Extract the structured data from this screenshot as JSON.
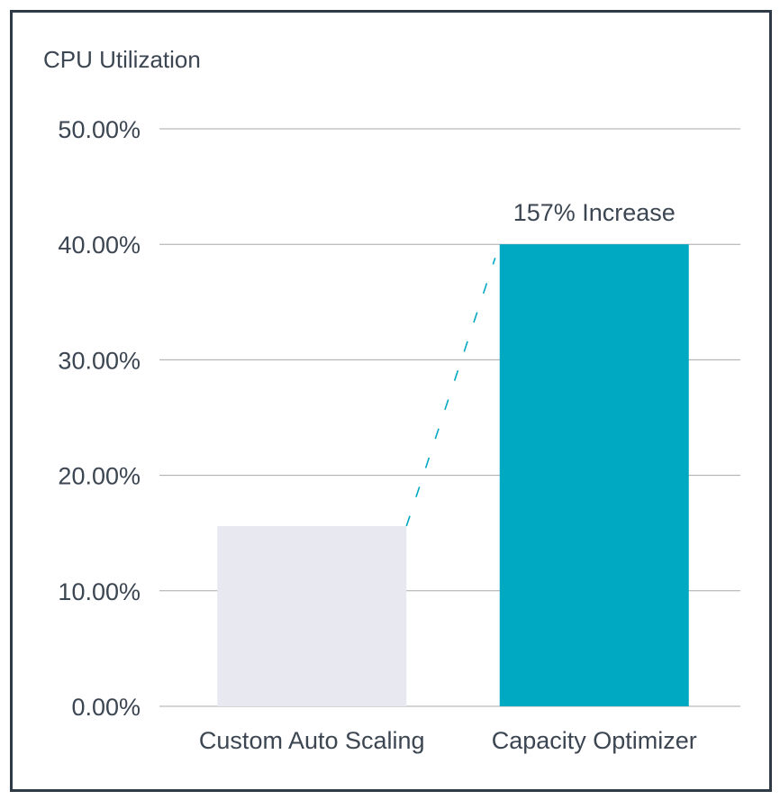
{
  "chart_data": {
    "type": "bar",
    "title": "CPU Utilization",
    "categories": [
      "Custom Auto Scaling",
      "Capacity Optimizer"
    ],
    "values": [
      15.6,
      40.0
    ],
    "ylim": [
      0,
      50
    ],
    "yticks": [
      {
        "value": 0,
        "label": "0.00%"
      },
      {
        "value": 10,
        "label": "10.00%"
      },
      {
        "value": 20,
        "label": "20.00%"
      },
      {
        "value": 30,
        "label": "30.00%"
      },
      {
        "value": 40,
        "label": "40.00%"
      },
      {
        "value": 50,
        "label": "50.00%"
      }
    ],
    "grid": true,
    "annotation": "157%  Increase",
    "colors": {
      "bars": [
        "#e8e8f1",
        "#00a9c2"
      ],
      "connector": "#00a9c2",
      "text": "#3c4652",
      "grid": "#a6a8ab",
      "border": "#2f3a47"
    }
  }
}
